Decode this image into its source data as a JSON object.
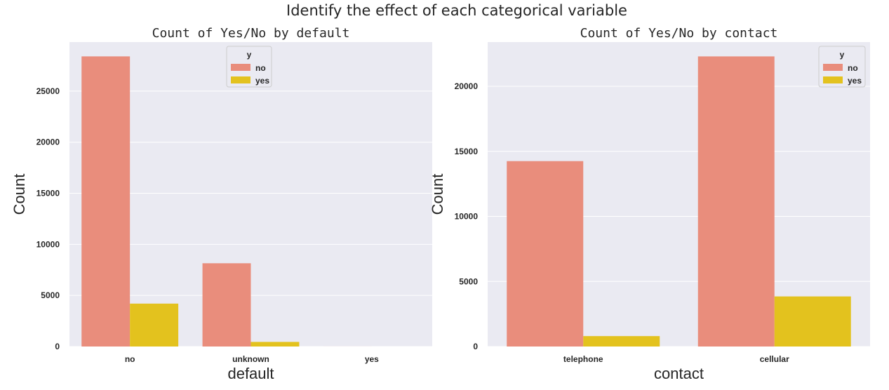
{
  "figure": {
    "suptitle": "Identify the effect of each categorical variable",
    "colors": {
      "no": "#e98d7c",
      "yes": "#e3c21e",
      "axes_bg": "#eaeaf2",
      "grid": "#ffffff",
      "text": "#262626"
    }
  },
  "chart_data": [
    {
      "type": "bar",
      "title": "Count of Yes/No by default",
      "xlabel": "default",
      "ylabel": "Count",
      "categories": [
        "no",
        "unknown",
        "yes"
      ],
      "series": [
        {
          "name": "no",
          "values": [
            28400,
            8150,
            3
          ]
        },
        {
          "name": "yes",
          "values": [
            4200,
            450,
            0
          ]
        }
      ],
      "ylim": [
        0,
        29800
      ],
      "yticks": [
        0,
        5000,
        10000,
        15000,
        20000,
        25000
      ],
      "legend": {
        "title": "y",
        "position": "upper-center"
      },
      "grid": true
    },
    {
      "type": "bar",
      "title": "Count of Yes/No by contact",
      "xlabel": "contact",
      "ylabel": "Count",
      "categories": [
        "telephone",
        "cellular"
      ],
      "series": [
        {
          "name": "no",
          "values": [
            14250,
            22300
          ]
        },
        {
          "name": "yes",
          "values": [
            800,
            3850
          ]
        }
      ],
      "ylim": [
        0,
        23400
      ],
      "yticks": [
        0,
        5000,
        10000,
        15000,
        20000
      ],
      "legend": {
        "title": "y",
        "position": "top-right"
      },
      "grid": true
    }
  ]
}
